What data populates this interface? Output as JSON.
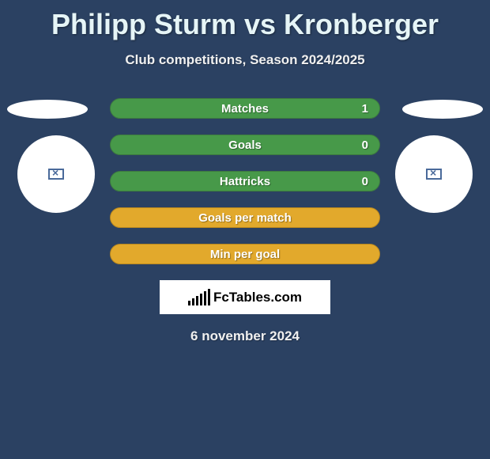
{
  "background_color": "#2b4162",
  "title": "Philipp Sturm vs Kronberger",
  "subtitle": "Club competitions, Season 2024/2025",
  "stats": [
    {
      "label": "Matches",
      "value": "1",
      "fill": "#479949",
      "border": "#3d7a3f"
    },
    {
      "label": "Goals",
      "value": "0",
      "fill": "#479949",
      "border": "#3d7a3f"
    },
    {
      "label": "Hattricks",
      "value": "0",
      "fill": "#479949",
      "border": "#3d7a3f"
    },
    {
      "label": "Goals per match",
      "value": "",
      "fill": "#e2a92c",
      "border": "#b8871f"
    },
    {
      "label": "Min per goal",
      "value": "",
      "fill": "#e2a92c",
      "border": "#b8871f"
    }
  ],
  "brand": "FcTables.com",
  "date": "6 november 2024",
  "brand_bar_heights": [
    6,
    9,
    12,
    15,
    18,
    21
  ]
}
